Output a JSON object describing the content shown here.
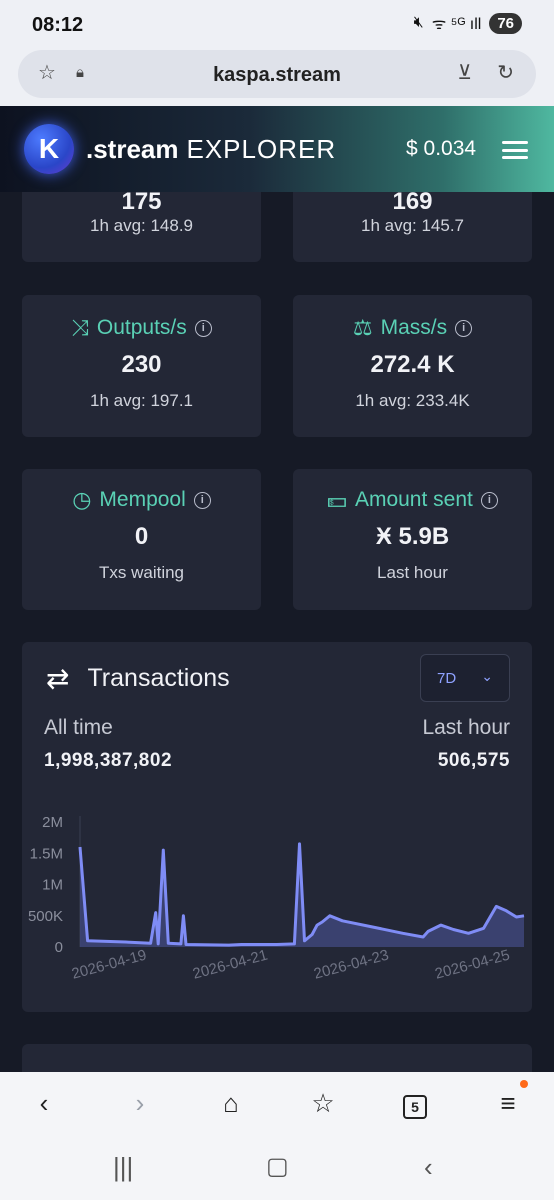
{
  "status_bar": {
    "time": "08:12",
    "signal": "ᯤ ⁵ᴳ ıll",
    "battery": "76"
  },
  "browser": {
    "url": "kaspa.stream",
    "tab_count": "5"
  },
  "header": {
    "logo_letter": "K",
    "brand_name": ".stream",
    "brand_suffix": "EXPLORER",
    "price": "$ 0.034"
  },
  "stats": {
    "top_left": {
      "value": "175",
      "avg": "1h avg: 148.9"
    },
    "top_right": {
      "value": "169",
      "avg": "1h avg: 145.7"
    },
    "outputs": {
      "title": "Outputs/s",
      "value": "230",
      "avg": "1h avg: 197.1"
    },
    "mass": {
      "title": "Mass/s",
      "value": "272.4 K",
      "avg": "1h avg: 233.4K"
    },
    "mempool": {
      "title": "Mempool",
      "value": "0",
      "sub": "Txs waiting"
    },
    "amount": {
      "title": "Amount sent",
      "value": "Ӿ 5.9B",
      "sub": "Last hour"
    }
  },
  "transactions": {
    "title": "Transactions",
    "range": "7D",
    "all_time_label": "All time",
    "all_time_value": "1,998,387,802",
    "last_hour_label": "Last hour",
    "last_hour_value": "506,575"
  },
  "chart_data": {
    "type": "area",
    "ylim": [
      0,
      2000000
    ],
    "y_ticks": [
      "0",
      "500K",
      "1M",
      "1.5M",
      "2M"
    ],
    "x_ticks": [
      "2026-04-19",
      "2026-04-21",
      "2026-04-23",
      "2026-04-25"
    ],
    "x_range": [
      "2026-04-18T12:00",
      "2026-04-25T20:00"
    ],
    "color": "#7f8cf5",
    "series": [
      {
        "points": [
          [
            "2026-04-18T12:00",
            1600000
          ],
          [
            "2026-04-18T15:00",
            100000
          ],
          [
            "2026-04-19T06:00",
            80000
          ],
          [
            "2026-04-19T16:00",
            60000
          ],
          [
            "2026-04-19T18:00",
            550000
          ],
          [
            "2026-04-19T19:00",
            50000
          ],
          [
            "2026-04-19T21:00",
            1550000
          ],
          [
            "2026-04-19T23:00",
            60000
          ],
          [
            "2026-04-20T04:00",
            50000
          ],
          [
            "2026-04-20T05:00",
            500000
          ],
          [
            "2026-04-20T06:00",
            40000
          ],
          [
            "2026-04-20T23:00",
            30000
          ],
          [
            "2026-04-21T04:00",
            40000
          ],
          [
            "2026-04-21T18:00",
            40000
          ],
          [
            "2026-04-22T01:00",
            50000
          ],
          [
            "2026-04-22T03:00",
            1650000
          ],
          [
            "2026-04-22T05:00",
            100000
          ],
          [
            "2026-04-22T08:00",
            200000
          ],
          [
            "2026-04-22T10:00",
            350000
          ],
          [
            "2026-04-22T12:00",
            400000
          ],
          [
            "2026-04-22T15:00",
            500000
          ],
          [
            "2026-04-22T20:00",
            420000
          ],
          [
            "2026-04-23T08:00",
            320000
          ],
          [
            "2026-04-23T20:00",
            220000
          ],
          [
            "2026-04-24T04:00",
            160000
          ],
          [
            "2026-04-24T06:00",
            250000
          ],
          [
            "2026-04-24T11:00",
            350000
          ],
          [
            "2026-04-24T16:00",
            280000
          ],
          [
            "2026-04-24T22:00",
            220000
          ],
          [
            "2026-04-25T04:00",
            300000
          ],
          [
            "2026-04-25T09:00",
            650000
          ],
          [
            "2026-04-25T13:00",
            580000
          ],
          [
            "2026-04-25T17:00",
            480000
          ],
          [
            "2026-04-25T20:00",
            500000
          ]
        ]
      }
    ]
  }
}
